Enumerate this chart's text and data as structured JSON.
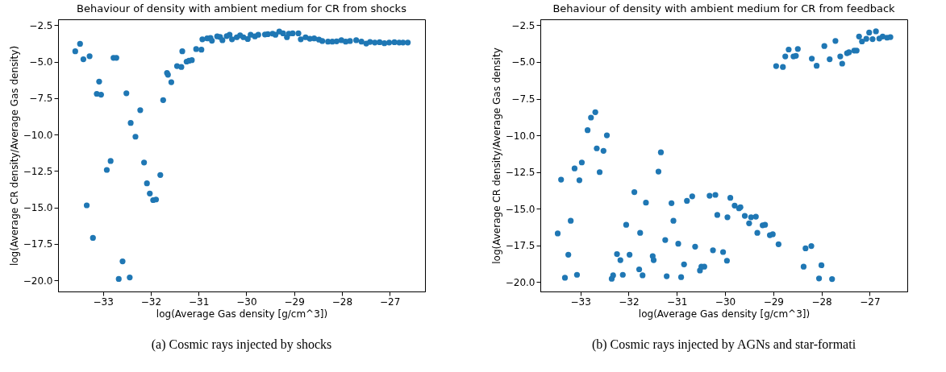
{
  "chart_data": [
    {
      "type": "scatter",
      "title": "Behaviour of density with ambient medium for CR from shocks",
      "xlabel": "log(Average Gas density [g/cm^3])",
      "ylabel": "log(Average CR density/Average Gas density)",
      "annotations": [
        "(a) Cosmic rays injected by shocks"
      ],
      "color": "#1f77b4",
      "marker": "circle",
      "grid": false,
      "xlim": [
        -33.94,
        -26.26
      ],
      "ylim": [
        -20.76,
        -2.09
      ],
      "xticks": [
        {
          "value": -33,
          "label": "−33"
        },
        {
          "value": -32,
          "label": "−32"
        },
        {
          "value": -31,
          "label": "−31"
        },
        {
          "value": -30,
          "label": "−30"
        },
        {
          "value": -29,
          "label": "−29"
        },
        {
          "value": -28,
          "label": "−28"
        },
        {
          "value": -27,
          "label": "−27"
        }
      ],
      "yticks": [
        {
          "value": -20,
          "label": "−20.0"
        },
        {
          "value": -17.5,
          "label": "−17.5"
        },
        {
          "value": -15,
          "label": "−15.0"
        },
        {
          "value": -12.5,
          "label": "−12.5"
        },
        {
          "value": -10,
          "label": "−10.0"
        },
        {
          "value": -7.5,
          "label": "−7.5"
        },
        {
          "value": -5,
          "label": "−5.0"
        },
        {
          "value": -2.5,
          "label": "−2.5"
        }
      ],
      "x": [
        -33.58,
        -33.48,
        -33.41,
        -33.28,
        -33.08,
        -33.13,
        -33.04,
        -33.34,
        -33.21,
        -32.92,
        -32.84,
        -32.78,
        -32.72,
        -32.51,
        -32.42,
        -32.32,
        -32.22,
        -32.59,
        -32.67,
        -32.44,
        -32.14,
        -32.08,
        -32.02,
        -31.95,
        -31.89,
        -31.8,
        -31.74,
        -31.66,
        -31.64,
        -31.57,
        -31.45,
        -31.36,
        -31.34,
        -31.25,
        -31.2,
        -31.14,
        -31.05,
        -30.94,
        -30.92,
        -30.82,
        -30.75,
        -30.72,
        -30.61,
        -30.55,
        -30.5,
        -30.41,
        -30.35,
        -30.3,
        -30.2,
        -30.13,
        -30.06,
        -29.97,
        -29.91,
        -29.82,
        -29.75,
        -29.61,
        -29.55,
        -29.45,
        -29.39,
        -29.31,
        -29.23,
        -29.15,
        -29.11,
        -29.03,
        -28.91,
        -28.86,
        -28.76,
        -28.67,
        -28.58,
        -28.48,
        -28.41,
        -28.29,
        -28.2,
        -28.11,
        -28.01,
        -27.92,
        -27.83,
        -27.7,
        -27.59,
        -27.49,
        -27.41,
        -27.31,
        -27.21,
        -27.11,
        -27.01,
        -26.9,
        -26.8,
        -26.72,
        -26.62
      ],
      "values": [
        -4.28,
        -3.77,
        -4.83,
        -4.62,
        -6.36,
        -7.2,
        -7.26,
        -14.85,
        -17.08,
        -12.42,
        -11.81,
        -4.73,
        -4.73,
        -7.16,
        -9.2,
        -10.14,
        -8.32,
        -18.69,
        -19.9,
        -19.8,
        -11.91,
        -13.34,
        -14.04,
        -14.49,
        -14.45,
        -12.77,
        -7.63,
        -5.77,
        -5.89,
        -6.4,
        -5.3,
        -5.36,
        -4.28,
        -4.99,
        -4.93,
        -4.89,
        -4.13,
        -4.17,
        -3.46,
        -3.4,
        -3.36,
        -3.56,
        -3.26,
        -3.3,
        -3.52,
        -3.24,
        -3.15,
        -3.46,
        -3.32,
        -3.19,
        -3.32,
        -3.44,
        -3.15,
        -3.26,
        -3.15,
        -3.13,
        -3.11,
        -3.07,
        -3.15,
        -2.93,
        -3.05,
        -3.32,
        -3.07,
        -3.05,
        -3.05,
        -3.46,
        -3.32,
        -3.42,
        -3.4,
        -3.48,
        -3.58,
        -3.62,
        -3.62,
        -3.6,
        -3.52,
        -3.62,
        -3.58,
        -3.52,
        -3.62,
        -3.75,
        -3.64,
        -3.68,
        -3.66,
        -3.73,
        -3.68,
        -3.66,
        -3.68,
        -3.68,
        -3.68
      ]
    },
    {
      "type": "scatter",
      "title": "Behaviour of density with ambient medium for CR from feedback",
      "xlabel": "log(Average Gas density [g/cm^3])",
      "ylabel": "log(Average CR density/Average Gas density",
      "annotations": [
        "(b) Cosmic rays injected by AGNs and star-formati"
      ],
      "color": "#1f77b4",
      "marker": "circle",
      "grid": false,
      "xlim": [
        -33.83,
        -26.22
      ],
      "ylim": [
        -20.65,
        -2.09
      ],
      "xticks": [
        {
          "value": -33,
          "label": "−33"
        },
        {
          "value": -32,
          "label": "−32"
        },
        {
          "value": -31,
          "label": "−31"
        },
        {
          "value": -30,
          "label": "−30"
        },
        {
          "value": -29,
          "label": "−29"
        },
        {
          "value": -28,
          "label": "−28"
        },
        {
          "value": -27,
          "label": "−27"
        }
      ],
      "yticks": [
        {
          "value": -20,
          "label": "−20.0"
        },
        {
          "value": -17.5,
          "label": "−17.5"
        },
        {
          "value": -15,
          "label": "−15.0"
        },
        {
          "value": -12.5,
          "label": "−12.5"
        },
        {
          "value": -10,
          "label": "−10.0"
        },
        {
          "value": -7.5,
          "label": "−7.5"
        },
        {
          "value": -5,
          "label": "−5.0"
        },
        {
          "value": -2.5,
          "label": "−2.5"
        }
      ],
      "x": [
        -28.94,
        -28.8,
        -28.75,
        -28.68,
        -28.58,
        -28.53,
        -28.49,
        -28.2,
        -28.1,
        -27.94,
        -27.83,
        -27.71,
        -27.61,
        -27.57,
        -27.47,
        -27.43,
        -27.32,
        -27.27,
        -27.22,
        -27.16,
        -27.07,
        -27.01,
        -26.94,
        -26.87,
        -26.8,
        -26.73,
        -26.64,
        -26.57,
        -33.47,
        -33.4,
        -33.32,
        -33.25,
        -33.2,
        -33.12,
        -33.07,
        -33.02,
        -32.97,
        -32.85,
        -32.78,
        -32.69,
        -32.66,
        -32.6,
        -32.52,
        -32.45,
        -32.35,
        -32.32,
        -32.24,
        -32.17,
        -32.12,
        -32.05,
        -31.98,
        -31.88,
        -31.78,
        -31.76,
        -31.71,
        -31.64,
        -31.5,
        -31.48,
        -31.38,
        -31.33,
        -31.24,
        -31.21,
        -31.11,
        -31.07,
        -30.97,
        -30.91,
        -30.85,
        -30.79,
        -30.68,
        -30.62,
        -30.52,
        -30.49,
        -30.43,
        -30.32,
        -30.2,
        -30.25,
        -30.16,
        -30.04,
        -29.96,
        -29.95,
        -29.89,
        -29.8,
        -29.71,
        -29.68,
        -29.59,
        -29.5,
        -29.46,
        -29.36,
        -29.33,
        -29.22,
        -29.17,
        -29.07,
        -29.01,
        -28.89,
        -28.37,
        -28.33,
        -28.21,
        -28.05,
        -28.0,
        -27.78
      ],
      "values": [
        -5.28,
        -5.34,
        -4.62,
        -4.15,
        -4.62,
        -4.58,
        -4.11,
        -4.77,
        -5.26,
        -3.91,
        -4.81,
        -3.56,
        -4.62,
        -5.11,
        -4.4,
        -4.34,
        -4.22,
        -4.22,
        -3.26,
        -3.6,
        -3.42,
        -2.99,
        -3.44,
        -2.91,
        -3.4,
        -3.26,
        -3.34,
        -3.3,
        -16.69,
        -13.02,
        -19.71,
        -18.14,
        -15.83,
        -12.26,
        -19.51,
        -13.06,
        -11.85,
        -9.65,
        -8.79,
        -8.42,
        -10.89,
        -12.51,
        -11.06,
        -10.0,
        -19.78,
        -19.55,
        -18.1,
        -18.51,
        -19.51,
        -16.1,
        -18.14,
        -13.87,
        -19.14,
        -16.65,
        -19.55,
        -14.59,
        -18.24,
        -18.51,
        -12.47,
        -11.16,
        -17.14,
        -19.61,
        -14.63,
        -15.83,
        -17.39,
        -19.67,
        -18.8,
        -14.47,
        -14.16,
        -17.59,
        -19.22,
        -18.96,
        -18.96,
        -14.12,
        -14.06,
        -17.84,
        -15.43,
        -17.96,
        -18.55,
        -15.59,
        -14.26,
        -14.79,
        -14.98,
        -14.9,
        -15.49,
        -16.0,
        -15.59,
        -15.55,
        -16.65,
        -16.14,
        -16.1,
        -16.81,
        -16.75,
        -17.43,
        -18.96,
        -17.71,
        -17.55,
        -19.76,
        -18.86,
        -19.8
      ]
    }
  ]
}
